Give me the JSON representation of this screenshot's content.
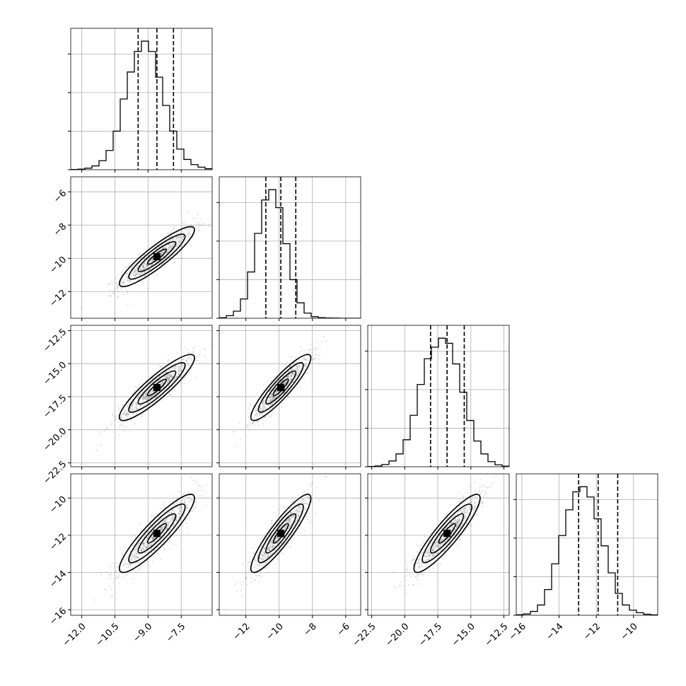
{
  "chart_data": {
    "type": "corner",
    "parameters": [
      {
        "range": [
          -12.5,
          -6.1
        ],
        "ticks": [
          -12.0,
          -10.5,
          -9.0,
          -7.5
        ],
        "tick_labels": [
          "−12.0",
          "−10.5",
          "−9.0",
          "−7.5"
        ],
        "mean": -8.6,
        "std": 0.85,
        "quantiles": [
          -9.45,
          -8.6,
          -7.85
        ]
      },
      {
        "range": [
          -13.6,
          -5.1
        ],
        "ticks": [
          -12,
          -10,
          -8,
          -6
        ],
        "tick_labels": [
          "−12",
          "−10",
          "−8",
          "−6"
        ],
        "mean": -9.9,
        "std": 0.9,
        "quantiles": [
          -10.8,
          -9.9,
          -9.0
        ]
      },
      {
        "range": [
          -22.8,
          -12.1
        ],
        "ticks": [
          -22.5,
          -20.0,
          -17.5,
          -15.0,
          -12.5
        ],
        "tick_labels": [
          "−22.5",
          "−20.0",
          "−17.5",
          "−15.0",
          "−12.5"
        ],
        "mean": -16.8,
        "std": 1.25,
        "quantiles": [
          -18.05,
          -16.8,
          -15.5
        ]
      },
      {
        "range": [
          -16.3,
          -8.7
        ],
        "ticks": [
          -16,
          -14,
          -12,
          -10
        ],
        "tick_labels": [
          "−16",
          "−14",
          "−12",
          "−10"
        ],
        "mean": -11.9,
        "std": 1.05,
        "quantiles": [
          -12.95,
          -11.9,
          -10.85
        ]
      }
    ],
    "correlation": 0.9,
    "histograms": [
      [
        0.002,
        0.005,
        0.012,
        0.03,
        0.07,
        0.15,
        0.3,
        0.55,
        0.76,
        0.92,
        1.0,
        0.92,
        0.72,
        0.5,
        0.3,
        0.16,
        0.08,
        0.04,
        0.02,
        0.008
      ],
      [
        0.004,
        0.02,
        0.055,
        0.15,
        0.36,
        0.66,
        0.92,
        1.0,
        0.86,
        0.58,
        0.3,
        0.12,
        0.04,
        0.012,
        0.005,
        0.002,
        0.001,
        0.0,
        0.0,
        0.0
      ],
      [
        0.002,
        0.006,
        0.018,
        0.045,
        0.1,
        0.21,
        0.4,
        0.64,
        0.84,
        0.93,
        1.0,
        0.96,
        0.8,
        0.58,
        0.36,
        0.2,
        0.1,
        0.04,
        0.015,
        0.005
      ],
      [
        0.004,
        0.01,
        0.03,
        0.08,
        0.2,
        0.4,
        0.62,
        0.82,
        0.96,
        1.0,
        0.92,
        0.75,
        0.54,
        0.33,
        0.17,
        0.08,
        0.04,
        0.02,
        0.008,
        0.003
      ]
    ],
    "hist_yticks": [
      0.3,
      0.6,
      0.9
    ],
    "contour_levels_sigma": [
      0.5,
      1.0,
      1.5,
      2.0
    ],
    "grid": true
  }
}
